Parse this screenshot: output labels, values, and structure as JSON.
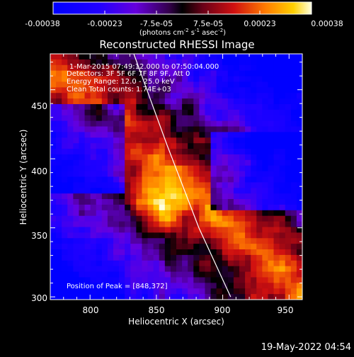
{
  "colorbar": {
    "ticks": [
      "-0.00038",
      "-0.00023",
      "-7.5e-05",
      "7.5e-05",
      "0.00023",
      "0.00038"
    ],
    "units_prefix": "(photons cm",
    "units_exp1": "-2",
    "units_s": " s",
    "units_exp2": "-1",
    "units_asec": " asec",
    "units_exp3": "-2",
    "units_suffix": ")"
  },
  "plot": {
    "title": "Reconstructed RHESSI Image",
    "xlabel": "Heliocentric X (arcsec)",
    "ylabel": "Heliocentric Y (arcsec)",
    "xticks": [
      "800",
      "850",
      "900",
      "950"
    ],
    "yticks": [
      "300",
      "350",
      "400",
      "450"
    ],
    "xrange": [
      770,
      960
    ],
    "yrange": [
      298,
      476
    ],
    "info": {
      "time": "1-Mar-2015 07:49:12.000 to 07:50:04.000",
      "detectors": "Detectors: 3F 5F 6F 7F 8F 9F, Att 0",
      "energy": "Energy Range: 12.0 - 25.0 keV",
      "clean": "Clean     Total counts: 1.74E+03"
    },
    "peak": "Position of Peak = [848,372]",
    "limb": [
      [
        833,
        476
      ],
      [
        858,
        410
      ],
      [
        882,
        350
      ],
      [
        906,
        300
      ]
    ]
  },
  "footer": {
    "timestamp": "19-May-2022 04:54"
  }
}
